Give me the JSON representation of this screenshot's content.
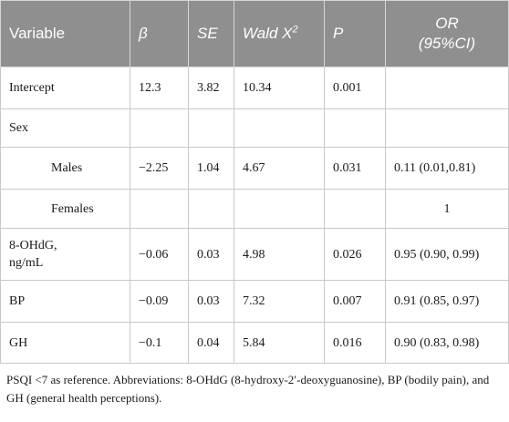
{
  "table": {
    "headers": {
      "variable": "Variable",
      "beta": "β",
      "se": "SE",
      "wald": "Wald X",
      "wald_sup": "2",
      "p": "P",
      "or_line1": "OR",
      "or_line2": "(95%CI)"
    },
    "rows": [
      {
        "variable": "Intercept",
        "beta": "12.3",
        "se": "3.82",
        "wald": "10.34",
        "p": "0.001",
        "or": ""
      },
      {
        "variable": "Sex",
        "beta": "",
        "se": "",
        "wald": "",
        "p": "",
        "or": ""
      },
      {
        "variable": "Males",
        "beta": "−2.25",
        "se": "1.04",
        "wald": "4.67",
        "p": "0.031",
        "or": "0.11 (0.01,0.81)"
      },
      {
        "variable": "Females",
        "beta": "",
        "se": "",
        "wald": "",
        "p": "",
        "or": "1"
      },
      {
        "variable_line1": "8-OHdG,",
        "variable_line2": "ng/mL",
        "beta": "−0.06",
        "se": "0.03",
        "wald": "4.98",
        "p": "0.026",
        "or": "0.95 (0.90, 0.99)"
      },
      {
        "variable": "BP",
        "beta": "−0.09",
        "se": "0.03",
        "wald": "7.32",
        "p": "0.007",
        "or": "0.91 (0.85, 0.97)"
      },
      {
        "variable": "GH",
        "beta": "−0.1",
        "se": "0.04",
        "wald": "5.84",
        "p": "0.016",
        "or": "0.90 (0.83, 0.98)"
      }
    ]
  },
  "footnote": "PSQI <7 as reference. Abbreviations: 8-OHdG (8-hydroxy-2′-deoxyguanosine), BP (bodily pain), and GH (general health perceptions)."
}
